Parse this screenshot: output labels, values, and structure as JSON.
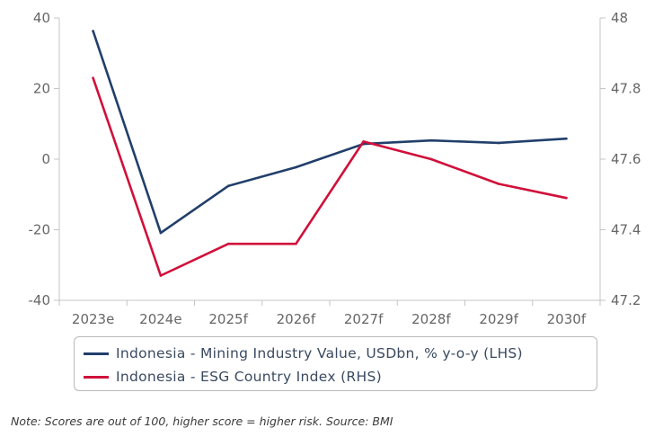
{
  "chart_data": {
    "type": "line",
    "categories": [
      "2023e",
      "2024e",
      "2025f",
      "2026f",
      "2027f",
      "2028f",
      "2029f",
      "2030f"
    ],
    "y_left": {
      "ylim": [
        -40,
        40
      ],
      "ticks": [
        "40",
        "20",
        "0",
        "-20",
        "-40"
      ],
      "tick_values": [
        40,
        20,
        0,
        -20,
        -40
      ]
    },
    "y_right": {
      "ylim": [
        47.2,
        48
      ],
      "ticks": [
        "48",
        "47.8",
        "47.6",
        "47.4",
        "47.2"
      ],
      "tick_values": [
        48,
        47.8,
        47.6,
        47.4,
        47.2
      ]
    },
    "series": [
      {
        "name": "Indonesia - Mining Industry Value, USDbn, % y-o-y (LHS)",
        "axis": "left",
        "color": "#223f6b",
        "values": [
          36.3,
          -20.9,
          -7.6,
          -2.3,
          4.3,
          5.3,
          4.6,
          5.8
        ]
      },
      {
        "name": "Indonesia - ESG Country Index (RHS)",
        "axis": "right",
        "color": "#d0103a",
        "values": [
          47.83,
          47.27,
          47.36,
          47.36,
          47.65,
          47.6,
          47.53,
          47.49
        ]
      }
    ],
    "grid": false,
    "legend_position": "bottom"
  },
  "legend": {
    "items": [
      {
        "label": "Indonesia - Mining Industry Value, USDbn, % y-o-y (LHS)",
        "color": "#223f6b"
      },
      {
        "label": "Indonesia - ESG Country Index (RHS)",
        "color": "#d0103a"
      }
    ]
  },
  "note": "Note: Scores are out of 100, higher score = higher risk. Source: BMI"
}
